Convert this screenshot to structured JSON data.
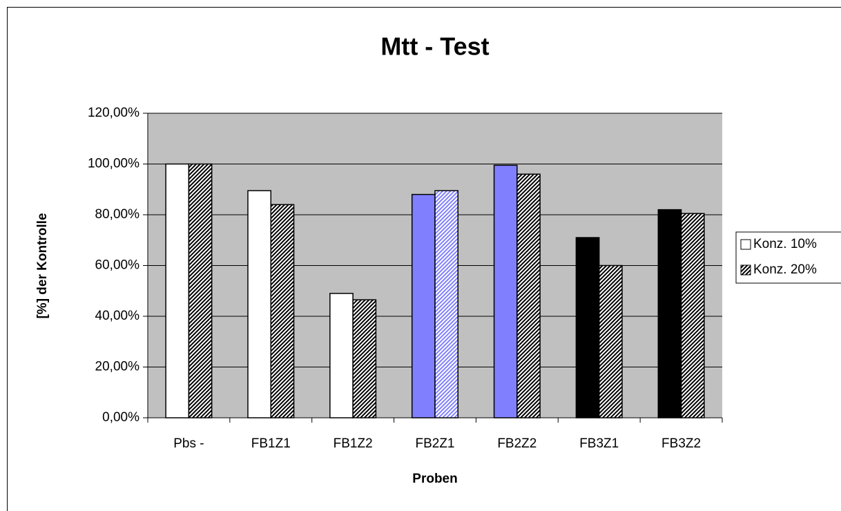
{
  "chart_data": {
    "type": "bar",
    "title": "Mtt - Test",
    "x_label": "Proben",
    "y_label": "[%] der Kontrolle",
    "categories": [
      "Pbs -",
      "FB1Z1",
      "FB1Z2",
      "FB2Z1",
      "FB2Z2",
      "FB3Z1",
      "FB3Z2"
    ],
    "series": [
      {
        "name": "Konz. 10%",
        "color": "#ffffff",
        "hatch": false,
        "colors": [
          "#ffffff",
          "#ffffff",
          "#ffffff",
          "#8080ff",
          "#8080ff",
          "#000000",
          "#000000"
        ],
        "values": [
          100,
          89.5,
          49,
          88,
          99.5,
          71,
          82
        ]
      },
      {
        "name": "Konz. 20%",
        "color": "#000000",
        "hatch": true,
        "colors": [
          "#000000",
          "#000000",
          "#000000",
          "#8080ff",
          "#000000",
          "#000000",
          "#000000"
        ],
        "values": [
          100,
          84,
          46.5,
          89.5,
          96,
          60,
          80.5
        ]
      }
    ],
    "ylim": [
      0,
      120
    ],
    "yticks": [
      {
        "value": 0,
        "label": "0,00%"
      },
      {
        "value": 20,
        "label": "20,00%"
      },
      {
        "value": 40,
        "label": "40,00%"
      },
      {
        "value": 60,
        "label": "60,00%"
      },
      {
        "value": 80,
        "label": "80,00%"
      },
      {
        "value": 100,
        "label": "100,00%"
      },
      {
        "value": 120,
        "label": "120,00%"
      }
    ],
    "grid": true,
    "plot_background": "#c0c0c0",
    "legend": "right"
  }
}
